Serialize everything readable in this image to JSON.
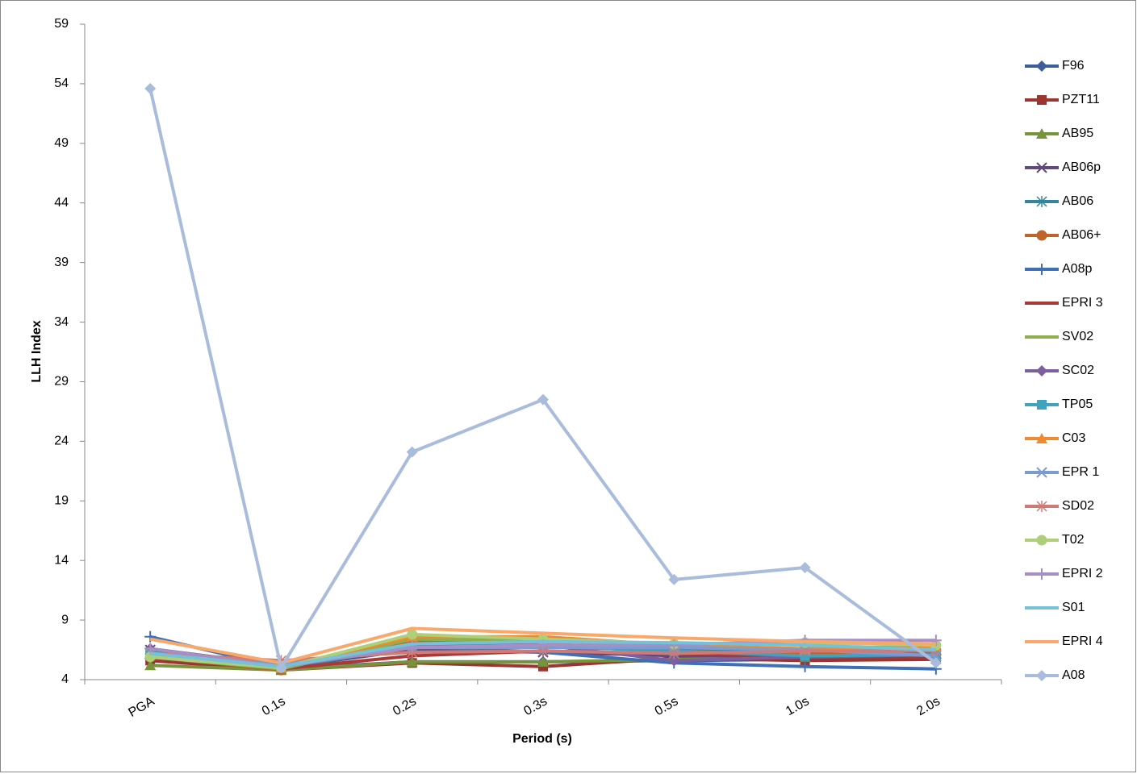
{
  "chart_data": {
    "type": "line",
    "x_label": "Period (s)",
    "y_label": "LLH Index",
    "categories": [
      "PGA",
      "0.1s",
      "0.2s",
      "0.3s",
      "0.5s",
      "1.0s",
      "2.0s"
    ],
    "ylim": [
      4,
      59
    ],
    "yticks": [
      4,
      9,
      14,
      19,
      24,
      29,
      34,
      39,
      44,
      49,
      54,
      59
    ],
    "grid": false,
    "legend": "right",
    "series": [
      {
        "name": "F96",
        "color": "#3a5f9a",
        "marker": "diamond",
        "values": [
          5.8,
          4.9,
          5.5,
          5.5,
          5.6,
          5.7,
          5.8
        ]
      },
      {
        "name": "PZT11",
        "color": "#9c3431",
        "marker": "square",
        "values": [
          5.6,
          4.8,
          5.4,
          5.1,
          5.8,
          5.6,
          5.7
        ]
      },
      {
        "name": "AB95",
        "color": "#77933c",
        "marker": "triangle",
        "values": [
          5.2,
          4.8,
          5.5,
          5.5,
          5.7,
          5.9,
          6.0
        ]
      },
      {
        "name": "AB06p",
        "color": "#604a7b",
        "marker": "x",
        "values": [
          6.5,
          5.0,
          6.5,
          6.3,
          6.0,
          6.0,
          6.2
        ]
      },
      {
        "name": "AB06",
        "color": "#31859c",
        "marker": "star",
        "values": [
          6.0,
          4.9,
          6.8,
          7.0,
          6.5,
          6.2,
          6.0
        ]
      },
      {
        "name": "AB06+",
        "color": "#c0642a",
        "marker": "circle",
        "values": [
          5.9,
          4.8,
          7.2,
          7.0,
          6.4,
          6.1,
          6.1
        ]
      },
      {
        "name": "A08p",
        "color": "#3f6fb5",
        "marker": "plus",
        "values": [
          7.6,
          5.0,
          6.8,
          6.3,
          5.4,
          5.1,
          4.9
        ]
      },
      {
        "name": "EPRI 3",
        "color": "#a83a36",
        "marker": "none",
        "values": [
          5.8,
          4.9,
          6.0,
          6.4,
          6.2,
          5.9,
          5.9
        ]
      },
      {
        "name": "SV02",
        "color": "#8db04f",
        "marker": "none",
        "values": [
          5.9,
          4.9,
          7.4,
          7.3,
          6.8,
          6.6,
          6.5
        ]
      },
      {
        "name": "SC02",
        "color": "#7d5ea0",
        "marker": "diamond",
        "values": [
          6.6,
          5.2,
          6.9,
          6.9,
          5.6,
          5.9,
          6.1
        ]
      },
      {
        "name": "TP05",
        "color": "#3fa3c0",
        "marker": "square",
        "values": [
          6.3,
          5.1,
          6.7,
          6.8,
          6.4,
          6.0,
          6.1
        ]
      },
      {
        "name": "C03",
        "color": "#f08a30",
        "marker": "triangle",
        "values": [
          6.1,
          5.0,
          7.6,
          7.6,
          6.9,
          6.6,
          6.8
        ]
      },
      {
        "name": "EPR 1",
        "color": "#7b9bd1",
        "marker": "x",
        "values": [
          6.2,
          5.3,
          6.7,
          6.7,
          6.7,
          6.5,
          6.0
        ]
      },
      {
        "name": "SD02",
        "color": "#d07a78",
        "marker": "star",
        "values": [
          6.2,
          5.6,
          6.3,
          6.4,
          6.2,
          6.4,
          6.4
        ]
      },
      {
        "name": "T02",
        "color": "#aecf78",
        "marker": "circle",
        "values": [
          5.9,
          5.0,
          7.8,
          7.4,
          7.0,
          7.1,
          6.9
        ]
      },
      {
        "name": "EPRI 2",
        "color": "#a68fc4",
        "marker": "plus",
        "values": [
          6.6,
          5.1,
          6.7,
          6.9,
          6.9,
          7.3,
          7.3
        ]
      },
      {
        "name": "S01",
        "color": "#74c1d9",
        "marker": "none",
        "values": [
          6.2,
          5.1,
          7.0,
          7.2,
          7.1,
          6.9,
          6.5
        ]
      },
      {
        "name": "EPRI 4",
        "color": "#f9a86a",
        "marker": "none",
        "values": [
          7.4,
          5.4,
          8.3,
          7.9,
          7.5,
          7.2,
          7.0
        ]
      },
      {
        "name": "A08",
        "color": "#a9bcdb",
        "marker": "diamond",
        "values": [
          53.6,
          5.0,
          23.1,
          27.5,
          12.4,
          13.4,
          5.4
        ]
      }
    ]
  }
}
